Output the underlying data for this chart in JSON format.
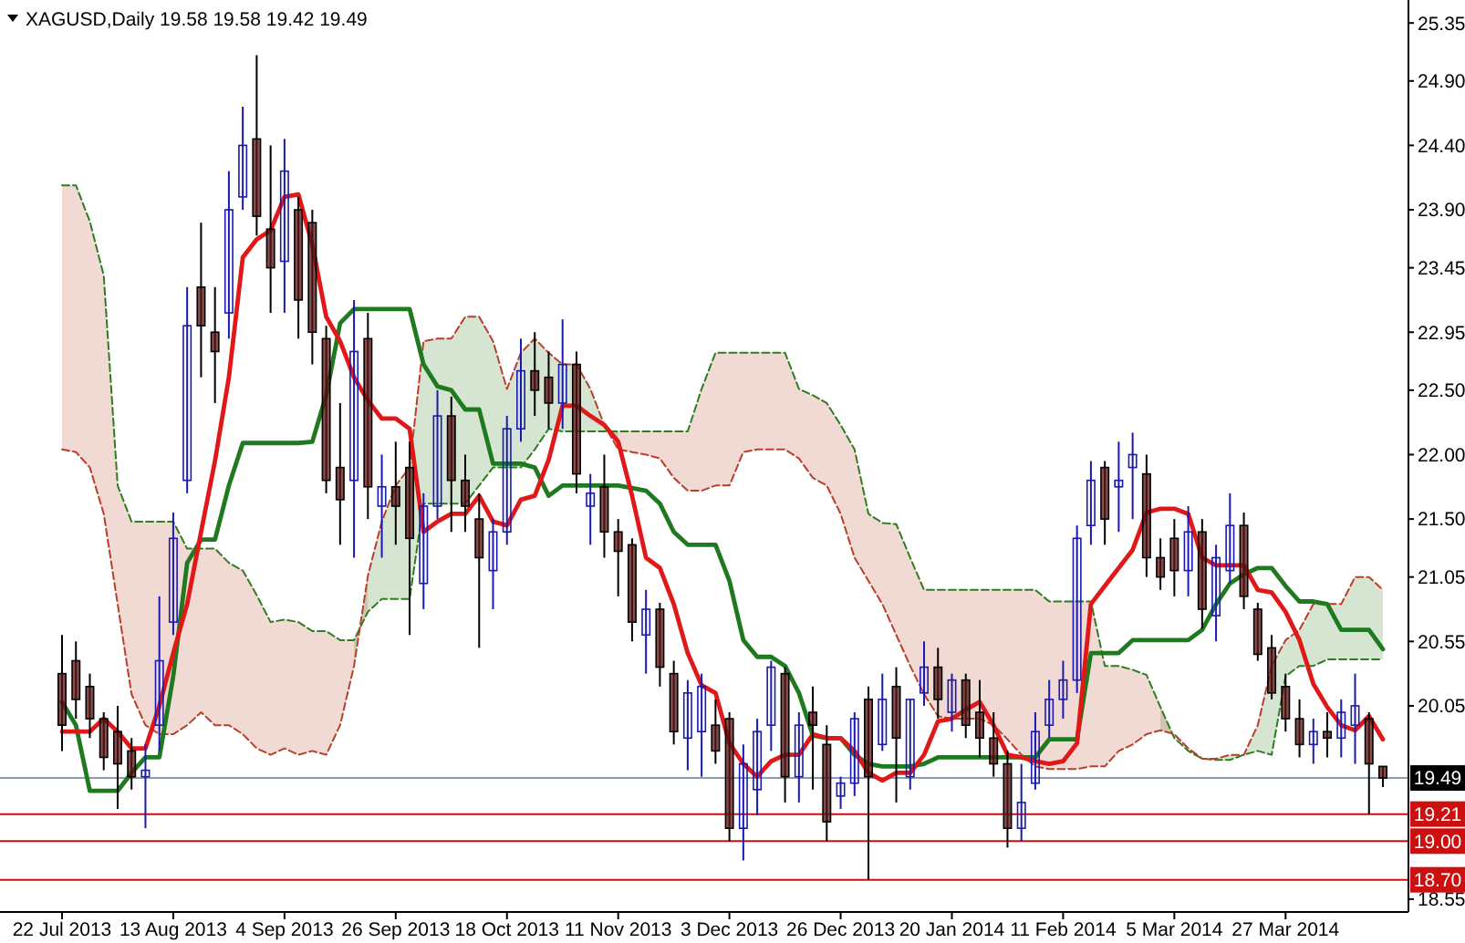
{
  "chart_data": {
    "type": "candlestick",
    "title": "XAGUSD,Daily  19.58 19.58 19.42 19.49",
    "categories": [
      "22 Jul 2013",
      null,
      null,
      null,
      null,
      null,
      null,
      null,
      "13 Aug 2013",
      null,
      null,
      null,
      null,
      null,
      null,
      null,
      "4 Sep 2013",
      null,
      null,
      null,
      null,
      null,
      null,
      null,
      "26 Sep 2013",
      null,
      null,
      null,
      null,
      null,
      null,
      null,
      "18 Oct 2013",
      null,
      null,
      null,
      null,
      null,
      null,
      null,
      "11 Nov 2013",
      null,
      null,
      null,
      null,
      null,
      null,
      null,
      "3 Dec 2013",
      null,
      null,
      null,
      null,
      null,
      null,
      null,
      "26 Dec 2013",
      null,
      null,
      null,
      null,
      null,
      null,
      null,
      "20 Jan 2014",
      null,
      null,
      null,
      null,
      null,
      null,
      null,
      "11 Feb 2014",
      null,
      null,
      null,
      null,
      null,
      null,
      null,
      "5 Mar 2014",
      null,
      null,
      null,
      null,
      null,
      null,
      null,
      "27 Mar 2014",
      null,
      null,
      null,
      null,
      null,
      null,
      null
    ],
    "ohlc": [
      [
        20.3,
        20.6,
        19.7,
        19.9
      ],
      [
        20.4,
        20.55,
        19.95,
        20.1
      ],
      [
        20.2,
        20.3,
        19.8,
        19.95
      ],
      [
        19.95,
        20.0,
        19.55,
        19.65
      ],
      [
        19.85,
        20.05,
        19.25,
        19.6
      ],
      [
        19.7,
        19.8,
        19.4,
        19.5
      ],
      [
        19.5,
        19.75,
        19.1,
        19.55
      ],
      [
        19.9,
        20.9,
        19.7,
        20.4
      ],
      [
        20.7,
        21.55,
        20.6,
        21.35
      ],
      [
        21.8,
        23.3,
        21.7,
        23.0
      ],
      [
        23.3,
        23.8,
        22.6,
        23.0
      ],
      [
        22.95,
        23.3,
        22.4,
        22.8
      ],
      [
        23.1,
        24.2,
        22.9,
        23.9
      ],
      [
        24.0,
        24.7,
        23.9,
        24.4
      ],
      [
        24.45,
        25.1,
        23.7,
        23.85
      ],
      [
        23.75,
        24.4,
        23.1,
        23.45
      ],
      [
        23.5,
        24.45,
        23.1,
        24.2
      ],
      [
        23.9,
        24.0,
        22.9,
        23.2
      ],
      [
        23.8,
        23.9,
        22.7,
        22.95
      ],
      [
        22.9,
        23.0,
        21.7,
        21.8
      ],
      [
        21.9,
        22.4,
        21.3,
        21.65
      ],
      [
        21.8,
        23.2,
        21.2,
        22.8
      ],
      [
        22.9,
        23.1,
        21.5,
        21.75
      ],
      [
        21.6,
        22.0,
        21.2,
        21.75
      ],
      [
        21.75,
        22.1,
        21.3,
        21.6
      ],
      [
        21.9,
        22.1,
        20.6,
        21.35
      ],
      [
        21.0,
        21.7,
        20.8,
        21.6
      ],
      [
        21.6,
        22.5,
        21.5,
        22.3
      ],
      [
        22.3,
        22.45,
        21.4,
        21.8
      ],
      [
        21.8,
        22.0,
        21.4,
        21.6
      ],
      [
        21.5,
        21.7,
        20.5,
        21.2
      ],
      [
        21.1,
        21.5,
        20.8,
        21.4
      ],
      [
        21.4,
        22.3,
        21.3,
        22.2
      ],
      [
        22.2,
        22.9,
        22.1,
        22.65
      ],
      [
        22.65,
        22.95,
        22.3,
        22.5
      ],
      [
        22.6,
        22.8,
        22.2,
        22.4
      ],
      [
        22.4,
        23.05,
        22.2,
        22.7
      ],
      [
        22.7,
        22.8,
        21.7,
        21.85
      ],
      [
        21.6,
        21.85,
        21.3,
        21.7
      ],
      [
        21.75,
        22.0,
        21.2,
        21.4
      ],
      [
        21.4,
        21.5,
        20.9,
        21.25
      ],
      [
        21.3,
        21.35,
        20.55,
        20.7
      ],
      [
        20.6,
        20.95,
        20.3,
        20.8
      ],
      [
        20.8,
        20.85,
        20.2,
        20.35
      ],
      [
        20.3,
        20.4,
        19.75,
        19.85
      ],
      [
        19.8,
        20.25,
        19.55,
        20.15
      ],
      [
        19.85,
        20.3,
        19.5,
        20.2
      ],
      [
        19.9,
        20.1,
        19.6,
        19.7
      ],
      [
        19.95,
        20.0,
        19.0,
        19.1
      ],
      [
        19.1,
        19.75,
        18.85,
        19.6
      ],
      [
        19.4,
        19.95,
        19.2,
        19.85
      ],
      [
        19.9,
        20.4,
        19.7,
        20.35
      ],
      [
        20.3,
        20.35,
        19.3,
        19.5
      ],
      [
        19.5,
        20.0,
        19.3,
        19.9
      ],
      [
        20.0,
        20.2,
        19.4,
        19.9
      ],
      [
        19.75,
        19.9,
        19.0,
        19.15
      ],
      [
        19.35,
        19.5,
        19.25,
        19.45
      ],
      [
        19.45,
        20.0,
        19.35,
        19.95
      ],
      [
        20.1,
        20.2,
        18.7,
        19.5
      ],
      [
        19.75,
        20.3,
        19.7,
        20.1
      ],
      [
        20.2,
        20.35,
        19.3,
        19.8
      ],
      [
        19.5,
        20.1,
        19.4,
        20.1
      ],
      [
        20.15,
        20.55,
        20.05,
        20.35
      ],
      [
        20.35,
        20.5,
        19.95,
        20.1
      ],
      [
        20.0,
        20.3,
        19.85,
        20.25
      ],
      [
        20.25,
        20.3,
        19.8,
        19.9
      ],
      [
        20.0,
        20.25,
        19.65,
        19.8
      ],
      [
        19.8,
        20.0,
        19.5,
        19.6
      ],
      [
        19.6,
        19.7,
        18.95,
        19.1
      ],
      [
        19.1,
        19.6,
        19.0,
        19.3
      ],
      [
        19.45,
        20.0,
        19.4,
        19.85
      ],
      [
        19.9,
        20.25,
        19.8,
        20.1
      ],
      [
        20.1,
        20.4,
        19.95,
        20.25
      ],
      [
        20.25,
        21.45,
        20.15,
        21.35
      ],
      [
        21.45,
        21.95,
        21.3,
        21.8
      ],
      [
        21.9,
        21.95,
        21.3,
        21.5
      ],
      [
        21.75,
        22.1,
        21.4,
        21.8
      ],
      [
        21.9,
        22.17,
        21.5,
        22.0
      ],
      [
        21.85,
        22.0,
        21.05,
        21.2
      ],
      [
        21.2,
        21.35,
        20.95,
        21.05
      ],
      [
        21.35,
        21.5,
        20.9,
        21.1
      ],
      [
        21.1,
        21.6,
        20.9,
        21.4
      ],
      [
        21.4,
        21.5,
        20.65,
        20.8
      ],
      [
        20.75,
        21.3,
        20.55,
        21.2
      ],
      [
        21.1,
        21.7,
        21.0,
        21.45
      ],
      [
        21.45,
        21.55,
        20.8,
        20.9
      ],
      [
        20.8,
        20.85,
        20.4,
        20.45
      ],
      [
        20.5,
        20.6,
        20.1,
        20.15
      ],
      [
        20.2,
        20.3,
        19.85,
        19.95
      ],
      [
        19.95,
        20.1,
        19.65,
        19.75
      ],
      [
        19.75,
        19.95,
        19.6,
        19.85
      ],
      [
        19.85,
        20.0,
        19.65,
        19.8
      ],
      [
        19.8,
        20.1,
        19.65,
        20.0
      ],
      [
        19.9,
        20.3,
        19.6,
        20.05
      ],
      [
        19.95,
        20.0,
        19.21,
        19.6
      ],
      [
        19.58,
        19.58,
        19.42,
        19.49
      ]
    ],
    "series": [
      {
        "type": "line",
        "color": "#2e7d1e",
        "line_style": "dashed",
        "lower": [
          null,
          null,
          null,
          null,
          null,
          null,
          null,
          null,
          null,
          null,
          null,
          null,
          null,
          null,
          null,
          null,
          null,
          null,
          null,
          null,
          null,
          20.56,
          20.78,
          20.88,
          20.88,
          20.88,
          21.62,
          21.62,
          21.62,
          21.62,
          21.76,
          21.9,
          21.9,
          21.9,
          22.04,
          22.2,
          22.18,
          22.18,
          22.18,
          22.18,
          22.18,
          null,
          null,
          null,
          null,
          null,
          null,
          null,
          null,
          null,
          null,
          null,
          null,
          null,
          null,
          null,
          null,
          null,
          null,
          null,
          null,
          null,
          null,
          null,
          null,
          null,
          null,
          null,
          null,
          null,
          null,
          null,
          null,
          null,
          null,
          null,
          null,
          null,
          null,
          20.04,
          19.8,
          19.7,
          19.64,
          19.63,
          19.63,
          19.67,
          19.7,
          19.67,
          20.28,
          20.36,
          20.36,
          20.41,
          20.41,
          20.41,
          20.41,
          20.41
        ],
        "upper": [
          null,
          null,
          null,
          null,
          null,
          null,
          null,
          null,
          null,
          null,
          null,
          null,
          null,
          null,
          null,
          null,
          null,
          null,
          null,
          null,
          null,
          20.36,
          21.06,
          21.48,
          21.76,
          21.9,
          22.88,
          22.9,
          22.9,
          23.07,
          23.07,
          22.88,
          22.51,
          22.79,
          22.9,
          22.79,
          22.7,
          22.7,
          22.51,
          22.23,
          22.04,
          null,
          null,
          null,
          null,
          null,
          null,
          null,
          null,
          null,
          null,
          null,
          null,
          null,
          null,
          null,
          null,
          null,
          null,
          null,
          null,
          null,
          null,
          null,
          null,
          null,
          null,
          null,
          null,
          null,
          null,
          null,
          null,
          null,
          null,
          null,
          null,
          null,
          null,
          19.86,
          19.83,
          19.72,
          19.64,
          19.64,
          19.67,
          19.67,
          19.9,
          20.36,
          20.56,
          20.64,
          20.84,
          20.84,
          20.84,
          21.05,
          21.05,
          20.95
        ],
        "values": [
          24.09,
          24.09,
          23.81,
          23.39,
          21.76,
          21.48,
          21.48,
          21.48,
          21.48,
          21.27,
          21.27,
          21.27,
          21.16,
          21.1,
          20.91,
          20.7,
          20.72,
          20.7,
          20.63,
          20.63,
          20.56,
          20.56,
          20.78,
          20.88,
          20.88,
          20.88,
          21.62,
          21.62,
          21.62,
          21.62,
          21.76,
          21.9,
          21.9,
          21.9,
          22.04,
          22.2,
          22.18,
          22.18,
          22.18,
          22.18,
          22.18,
          22.18,
          22.18,
          22.18,
          22.18,
          22.18,
          22.51,
          22.79,
          22.79,
          22.79,
          22.79,
          22.79,
          22.79,
          22.51,
          22.46,
          22.4,
          22.23,
          22.04,
          21.54,
          21.47,
          21.46,
          21.2,
          20.95,
          20.95,
          20.95,
          20.95,
          20.95,
          20.95,
          20.95,
          20.95,
          20.95,
          20.86,
          20.86,
          20.86,
          20.86,
          20.36,
          20.36,
          20.33,
          20.29,
          20.04,
          19.8,
          19.7,
          19.64,
          19.63,
          19.63,
          19.67,
          19.7,
          19.67,
          20.28,
          20.36,
          20.36,
          20.41,
          20.41,
          20.41,
          20.41,
          20.41
        ]
      },
      {
        "type": "line",
        "color": "#b8402a",
        "line_style": "dashed",
        "lower": [
          22.04,
          22.02,
          21.9,
          21.54,
          20.84,
          20.14,
          19.9,
          19.83,
          19.83,
          19.9,
          20.0,
          19.9,
          19.9,
          19.83,
          19.72,
          19.67,
          19.72,
          19.67,
          19.7,
          19.67,
          19.9,
          20.36,
          21.06,
          null,
          null,
          null,
          null,
          null,
          null,
          null,
          null,
          null,
          null,
          null,
          null,
          null,
          null,
          null,
          null,
          22.23,
          22.04,
          22.02,
          22.0,
          21.97,
          21.82,
          21.72,
          21.72,
          21.76,
          21.76,
          22.02,
          22.04,
          22.04,
          22.04,
          21.97,
          21.82,
          21.76,
          21.54,
          21.2,
          21.02,
          20.84,
          20.6,
          20.36,
          20.14,
          19.97,
          19.95,
          19.95,
          19.95,
          19.9,
          19.79,
          19.67,
          19.58,
          19.56,
          19.56,
          19.56,
          19.58,
          19.58,
          19.7,
          19.75,
          19.83,
          19.86,
          19.83,
          null,
          null,
          null,
          null,
          null,
          null,
          null,
          null,
          null,
          null,
          null,
          null,
          null,
          null,
          null
        ],
        "upper": [
          24.09,
          24.09,
          23.81,
          23.39,
          21.76,
          21.48,
          21.48,
          21.48,
          21.48,
          21.27,
          21.27,
          21.27,
          21.16,
          21.1,
          20.91,
          20.7,
          20.72,
          20.7,
          20.63,
          20.63,
          20.56,
          20.56,
          20.78,
          null,
          null,
          null,
          null,
          null,
          null,
          null,
          null,
          null,
          null,
          null,
          null,
          null,
          null,
          null,
          null,
          22.18,
          22.18,
          22.18,
          22.18,
          22.18,
          22.18,
          22.18,
          22.51,
          22.79,
          22.79,
          22.79,
          22.79,
          22.79,
          22.79,
          22.51,
          22.46,
          22.4,
          22.23,
          22.04,
          21.54,
          21.47,
          21.46,
          21.2,
          20.95,
          20.95,
          20.95,
          20.95,
          20.95,
          20.95,
          20.95,
          20.95,
          20.95,
          20.86,
          20.86,
          20.86,
          20.86,
          20.36,
          20.36,
          20.33,
          20.29,
          20.04,
          19.8,
          null,
          null,
          null,
          null,
          null,
          null,
          null,
          null,
          null,
          null,
          null,
          null,
          null,
          null,
          null
        ],
        "values": [
          22.04,
          22.02,
          21.9,
          21.54,
          20.84,
          20.14,
          19.9,
          19.83,
          19.83,
          19.9,
          20.0,
          19.9,
          19.9,
          19.83,
          19.72,
          19.67,
          19.72,
          19.67,
          19.7,
          19.67,
          19.9,
          20.36,
          21.06,
          21.48,
          21.76,
          21.9,
          22.88,
          22.9,
          22.9,
          23.07,
          23.07,
          22.88,
          22.51,
          22.79,
          22.9,
          22.79,
          22.7,
          22.7,
          22.51,
          22.23,
          22.04,
          22.02,
          22.0,
          21.97,
          21.82,
          21.72,
          21.72,
          21.76,
          21.76,
          22.02,
          22.04,
          22.04,
          22.04,
          21.97,
          21.82,
          21.76,
          21.54,
          21.2,
          21.02,
          20.84,
          20.6,
          20.36,
          20.14,
          19.97,
          19.95,
          19.95,
          19.95,
          19.9,
          19.79,
          19.67,
          19.58,
          19.56,
          19.56,
          19.56,
          19.58,
          19.58,
          19.7,
          19.75,
          19.83,
          19.86,
          19.83,
          19.72,
          19.64,
          19.64,
          19.67,
          19.67,
          19.9,
          20.36,
          20.56,
          20.64,
          20.84,
          20.84,
          20.84,
          21.05,
          21.05,
          20.95
        ]
      },
      {
        "type": "line",
        "color": "#1f7a1f",
        "values": [
          20.08,
          19.9,
          19.39,
          19.39,
          19.39,
          19.53,
          19.65,
          19.65,
          20.28,
          21.16,
          21.34,
          21.34,
          21.76,
          22.09,
          22.09,
          22.09,
          22.09,
          22.09,
          22.1,
          22.46,
          23.02,
          23.13,
          23.13,
          23.13,
          23.13,
          23.13,
          22.7,
          22.53,
          22.5,
          22.35,
          22.35,
          21.93,
          21.93,
          21.93,
          21.9,
          21.68,
          21.76,
          21.76,
          21.76,
          21.76,
          21.76,
          21.74,
          21.72,
          21.62,
          21.4,
          21.3,
          21.3,
          21.3,
          21.02,
          20.56,
          20.43,
          20.43,
          20.36,
          20.15,
          19.82,
          19.8,
          19.8,
          19.67,
          19.6,
          19.58,
          19.58,
          19.58,
          19.6,
          19.65,
          19.65,
          19.65,
          19.65,
          19.65,
          19.65,
          19.65,
          19.65,
          19.79,
          19.79,
          19.79,
          20.46,
          20.46,
          20.46,
          20.56,
          20.56,
          20.56,
          20.56,
          20.56,
          20.64,
          20.84,
          21.0,
          21.07,
          21.12,
          21.12,
          20.98,
          20.86,
          20.86,
          20.84,
          20.64,
          20.64,
          20.64,
          20.49
        ]
      },
      {
        "type": "line",
        "color": "#e01818",
        "values": [
          19.85,
          19.85,
          19.85,
          19.95,
          19.85,
          19.72,
          19.72,
          20.05,
          20.46,
          20.84,
          21.4,
          21.95,
          22.6,
          23.53,
          23.67,
          23.74,
          24.0,
          24.02,
          23.63,
          23.07,
          22.88,
          22.6,
          22.42,
          22.28,
          22.28,
          22.2,
          21.4,
          21.48,
          21.54,
          21.54,
          21.68,
          21.48,
          21.45,
          21.65,
          21.68,
          21.96,
          22.38,
          22.38,
          22.3,
          22.23,
          22.1,
          21.68,
          21.2,
          21.12,
          20.84,
          20.46,
          20.21,
          20.15,
          19.76,
          19.6,
          19.5,
          19.62,
          19.67,
          19.67,
          19.83,
          19.8,
          19.8,
          19.7,
          19.53,
          19.47,
          19.53,
          19.53,
          19.67,
          19.93,
          19.95,
          20.02,
          20.08,
          19.9,
          19.67,
          19.65,
          19.62,
          19.6,
          19.62,
          19.76,
          20.84,
          20.98,
          21.12,
          21.26,
          21.55,
          21.58,
          21.58,
          21.54,
          21.2,
          21.14,
          21.14,
          21.14,
          20.95,
          20.93,
          20.78,
          20.56,
          20.22,
          20.04,
          19.9,
          19.86,
          19.97,
          19.79
        ]
      }
    ],
    "ylim": [
      18.45,
      25.5
    ],
    "yticks": [
      25.35,
      {
        "value": 24.9,
        "label": "24.90"
      },
      {
        "value": 24.4,
        "label": "24.40"
      },
      {
        "value": 23.9,
        "label": "23.90"
      },
      23.45,
      22.95,
      {
        "value": 22.5,
        "label": "22.50"
      },
      {
        "value": 22.0,
        "label": "22.00"
      },
      {
        "value": 21.5,
        "label": "21.50"
      },
      21.05,
      20.55,
      20.05,
      18.55
    ],
    "ref_lines": [
      {
        "axis": "y",
        "value": 19.49,
        "label": "19.49",
        "color": "#8c9cb0"
      },
      {
        "axis": "y",
        "value": 19.21,
        "label": "19.21",
        "color": "#cc1010"
      },
      {
        "axis": "y",
        "value": 19.0,
        "label": "19.00",
        "color": "#cc1010"
      },
      {
        "axis": "y",
        "value": 18.7,
        "label": "18.70",
        "color": "#cc1010"
      }
    ]
  }
}
